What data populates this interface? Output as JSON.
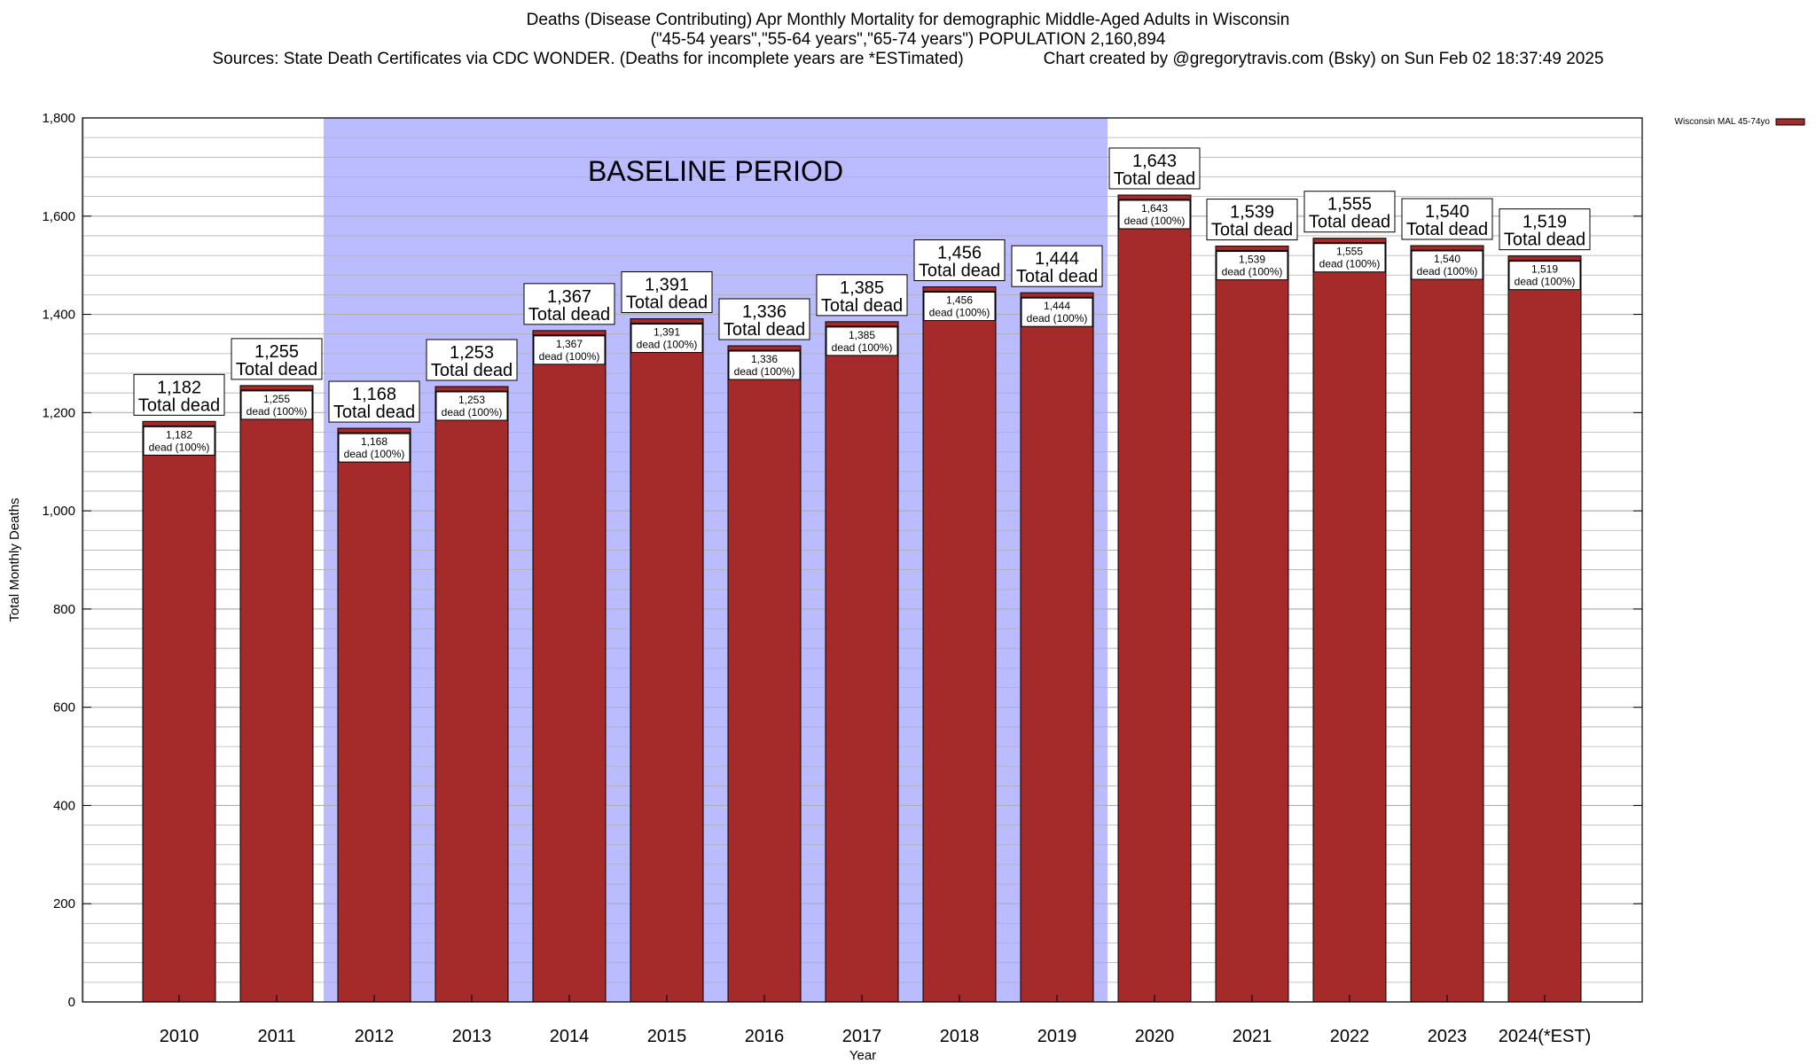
{
  "title": {
    "line1": "Deaths (Disease Contributing) Apr Monthly Mortality for demographic Middle-Aged Adults in Wisconsin",
    "line2": "(\"45-54 years\",\"55-64 years\",\"65-74 years\") POPULATION 2,160,894",
    "line3_left": "Sources: State Death Certificates via CDC WONDER. (Deaths for incomplete years are *ESTimated)",
    "line3_right": "Chart created by @gregorytravis.com (Bsky) on Sun Feb 02 18:37:49 2025"
  },
  "colors": {
    "bar": "#a52a2a",
    "baseline_band": "#bbbbff",
    "grid": "#b0b0b0"
  },
  "chart_data": {
    "type": "bar",
    "categories": [
      "2010",
      "2011",
      "2012",
      "2013",
      "2014",
      "2015",
      "2016",
      "2017",
      "2018",
      "2019",
      "2020",
      "2021",
      "2022",
      "2023",
      "2024(*EST)"
    ],
    "series": [
      {
        "name": "Wisconsin MAL 45-74yo",
        "values": [
          1182,
          1255,
          1168,
          1253,
          1367,
          1391,
          1336,
          1385,
          1456,
          1444,
          1643,
          1539,
          1555,
          1540,
          1519
        ]
      }
    ],
    "value_labels": [
      "1,182",
      "1,255",
      "1,168",
      "1,253",
      "1,367",
      "1,391",
      "1,336",
      "1,385",
      "1,456",
      "1,444",
      "1,643",
      "1,539",
      "1,555",
      "1,540",
      "1,519"
    ],
    "total_label_suffix": "Total dead",
    "inner_label_suffix": "dead (100%)",
    "xlabel": "Year",
    "ylabel": "Total Monthly Deaths",
    "ylim": [
      0,
      1800
    ],
    "yticks": [
      0,
      200,
      400,
      600,
      800,
      1000,
      1200,
      1400,
      1600,
      1800
    ],
    "ytick_labels": [
      "0",
      "200",
      "400",
      "600",
      "800",
      "1,000",
      "1,200",
      "1,400",
      "1,600",
      "1,800"
    ],
    "baseline_period": {
      "label": "BASELINE PERIOD",
      "from": "2012",
      "to": "2019"
    },
    "legend": {
      "label": "Wisconsin MAL 45-74yo",
      "position": "top-right"
    },
    "grid": true
  }
}
